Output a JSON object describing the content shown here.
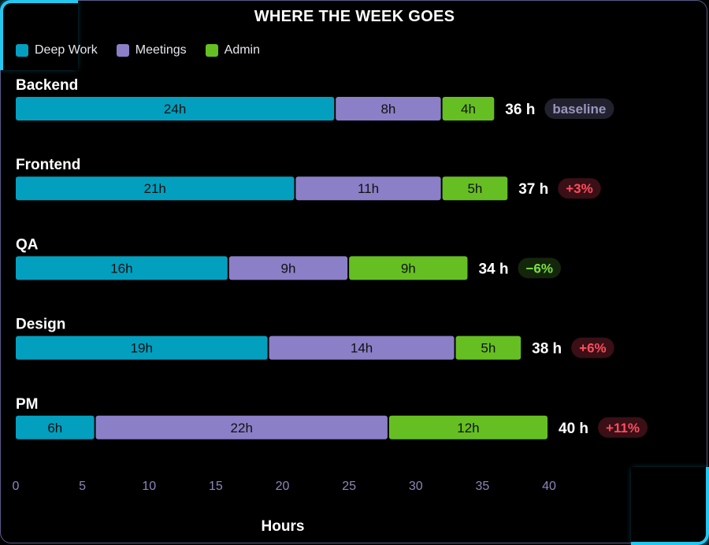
{
  "chart_data": {
    "type": "bar",
    "orientation": "horizontal",
    "stacked": true,
    "title": "WHERE THE WEEK GOES",
    "xlabel": "Hours",
    "ylabel": "",
    "xlim": [
      0,
      40
    ],
    "xticks": [
      "0",
      "5",
      "10",
      "15",
      "20",
      "25",
      "30",
      "35",
      "40"
    ],
    "grid": false,
    "legend_position": "top-left",
    "categories": [
      "Backend",
      "Frontend",
      "QA",
      "Design",
      "PM"
    ],
    "series": [
      {
        "name": "Deep Work",
        "color": "#039fbf",
        "values": [
          24,
          21,
          16,
          19,
          6
        ],
        "labels": [
          "24h",
          "21h",
          "16h",
          "19h",
          "6h"
        ]
      },
      {
        "name": "Meetings",
        "color": "#8b7fc7",
        "values": [
          8,
          11,
          9,
          14,
          22
        ],
        "labels": [
          "8h",
          "11h",
          "9h",
          "14h",
          "22h"
        ]
      },
      {
        "name": "Admin",
        "color": "#66bf22",
        "values": [
          4,
          5,
          9,
          5,
          12
        ],
        "labels": [
          "4h",
          "5h",
          "9h",
          "5h",
          "12h"
        ]
      }
    ],
    "totals": [
      "36 h",
      "37 h",
      "34 h",
      "38 h",
      "40 h"
    ],
    "badges": [
      {
        "text": "baseline",
        "tone": "neutral"
      },
      {
        "text": "+3%",
        "tone": "up"
      },
      {
        "text": "−6%",
        "tone": "down"
      },
      {
        "text": "+6%",
        "tone": "up"
      },
      {
        "text": "+11%",
        "tone": "up"
      }
    ],
    "badge_colors": {
      "neutral": {
        "bg": "#22222e",
        "fg": "#9a95c0"
      },
      "up": {
        "bg": "#3a0f16",
        "fg": "#ff4d5e"
      },
      "down": {
        "bg": "#13260c",
        "fg": "#7ee03e"
      }
    },
    "accent_color": "#22c8f0"
  }
}
